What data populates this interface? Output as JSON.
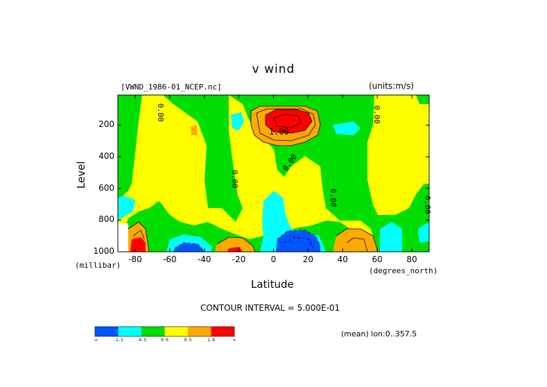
{
  "chart_data": {
    "type": "heatmap",
    "title": "v wind",
    "subtitle_left": "[VWND_1986-01_NCEP.nc]",
    "subtitle_right": "(units:m/s)",
    "xlabel": "Latitude",
    "xunits": "(degrees_north)",
    "ylabel": "Level",
    "yunits": "(millibar)",
    "xlim": [
      -90,
      90
    ],
    "ylim": [
      1000,
      10
    ],
    "xticks": [
      "-80",
      "-60",
      "-40",
      "-20",
      "0",
      "20",
      "40",
      "60",
      "80"
    ],
    "xtick_values": [
      -80,
      -60,
      -40,
      -20,
      0,
      20,
      40,
      60,
      80
    ],
    "yticks": [
      "200",
      "400",
      "600",
      "800",
      "1000"
    ],
    "ytick_values": [
      200,
      400,
      600,
      800,
      1000
    ],
    "contour_interval_text": "CONTOUR INTERVAL = 5.000E-01",
    "footer_note": "(mean) lon:0..357.5",
    "contour_labels": [
      "1.00",
      "0.00",
      "0.00",
      "0.00",
      "0.00",
      "0.00",
      "0.00"
    ],
    "colorbar": {
      "colors": [
        "#0055ff",
        "#00ffff",
        "#00dd00",
        "#ffff00",
        "#ffaa00",
        "#ff0000"
      ],
      "tick_labels": [
        "-∞",
        "-1.5",
        "-0.5",
        "0.0",
        "0.5",
        "1.0",
        "∞"
      ]
    },
    "regions": [
      {
        "level": "yellow",
        "color": "#ffff00",
        "desc": "background field 0.0 to 0.5"
      },
      {
        "level": "green",
        "color": "#00dd00",
        "desc": "-0.5 to 0.0"
      },
      {
        "level": "cyan",
        "color": "#00ffff",
        "desc": "-1.5 to -0.5"
      },
      {
        "level": "blue",
        "color": "#0055ff",
        "desc": "< -1.5"
      },
      {
        "level": "orange",
        "color": "#ffaa00",
        "desc": "0.5 to 1.0"
      },
      {
        "level": "red",
        "color": "#ff0000",
        "desc": "> 1.0"
      }
    ]
  }
}
